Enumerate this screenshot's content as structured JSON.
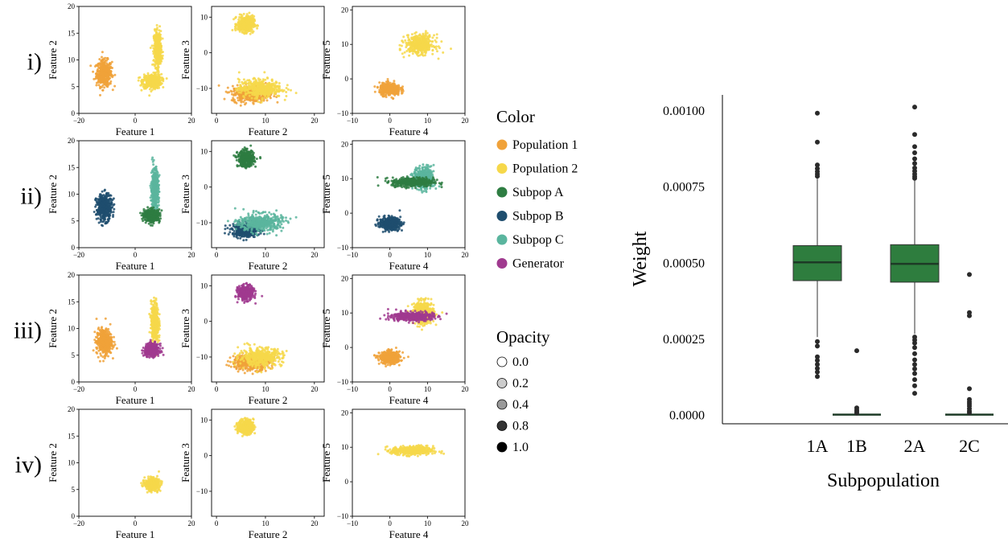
{
  "colors": {
    "population_1": "#f0a23a",
    "population_2": "#f6d84a",
    "subpop_a": "#2e7d42",
    "subpop_b": "#1f4e6e",
    "subpop_c": "#5ab59e",
    "generator": "#a03a8f",
    "box_fill": "#2e7d3e",
    "median_line": "#1d3a26",
    "outlier": "#2a2a2a"
  },
  "scatter_panel": {
    "row_labels": [
      "i)",
      "ii)",
      "iii)",
      "iv)"
    ],
    "panel_columns": [
      {
        "xlabel": "Feature 1",
        "ylabel": "Feature 2",
        "xlim": [
          -20,
          20
        ],
        "ylim": [
          0,
          20
        ],
        "xticks": [
          "−20",
          "0",
          "20"
        ],
        "yticks": [
          "0",
          "5",
          "10",
          "15",
          "20"
        ]
      },
      {
        "xlabel": "Feature 2",
        "ylabel": "Feature 3",
        "xlim": [
          -1,
          22
        ],
        "ylim": [
          -17,
          13
        ],
        "xticks": [
          "0",
          "10",
          "20"
        ],
        "yticks": [
          "10",
          "0",
          "−10"
        ]
      },
      {
        "xlabel": "Feature 4",
        "ylabel": "Feature 5",
        "xlim": [
          -10,
          20
        ],
        "ylim": [
          -10,
          21
        ],
        "xticks": [
          "−10",
          "0",
          "10",
          "20"
        ],
        "yticks": [
          "20",
          "10",
          "0",
          "−10"
        ]
      }
    ]
  },
  "legend": {
    "color_title": "Color",
    "color_items": [
      {
        "label": "Population 1",
        "color": "#f0a23a"
      },
      {
        "label": "Population 2",
        "color": "#f6d84a"
      },
      {
        "label": "Subpop A",
        "color": "#2e7d42"
      },
      {
        "label": "Subpop B",
        "color": "#1f4e6e"
      },
      {
        "label": "Subpop C",
        "color": "#5ab59e"
      },
      {
        "label": "Generator",
        "color": "#a03a8f"
      }
    ],
    "opacity_title": "Opacity",
    "opacity_items": [
      {
        "label": "0.0",
        "value": 0.0
      },
      {
        "label": "0.2",
        "value": 0.2
      },
      {
        "label": "0.4",
        "value": 0.4
      },
      {
        "label": "0.8",
        "value": 0.8
      },
      {
        "label": "1.0",
        "value": 1.0
      }
    ]
  },
  "chart_data": [
    {
      "type": "scatter",
      "grid": false,
      "legend": "right",
      "rows": [
        {
          "label": "i)",
          "clusters": [
            {
              "series": "Population 1",
              "space": "F1-F2",
              "center": [
                -11,
                7.5
              ],
              "spread": [
                2.5,
                2.2
              ]
            },
            {
              "series": "Population 2",
              "space": "F1-F2",
              "center": [
                6,
                6
              ],
              "spread": [
                3.0,
                1.2
              ]
            },
            {
              "series": "Population 2",
              "space": "F1-F2",
              "center": [
                8,
                12
              ],
              "spread": [
                1.2,
                3.0
              ]
            },
            {
              "series": "Population 2",
              "space": "F2-F3",
              "center": [
                6,
                8
              ],
              "spread": [
                1.5,
                2.0
              ]
            },
            {
              "series": "Population 1",
              "space": "F2-F3",
              "center": [
                7,
                -11.5
              ],
              "spread": [
                3.5,
                2.0
              ]
            },
            {
              "series": "Population 2",
              "space": "F2-F3",
              "center": [
                9,
                -10
              ],
              "spread": [
                4.0,
                2.3
              ]
            },
            {
              "series": "Population 1",
              "space": "F4-F5",
              "center": [
                0,
                -3
              ],
              "spread": [
                2.5,
                1.6
              ]
            },
            {
              "series": "Population 2",
              "space": "F4-F5",
              "center": [
                8,
                10
              ],
              "spread": [
                3.5,
                2.5
              ]
            }
          ]
        },
        {
          "label": "ii)",
          "clusters": [
            {
              "series": "Subpop B",
              "space": "F1-F2",
              "center": [
                -11,
                7.5
              ],
              "spread": [
                2.5,
                2.2
              ]
            },
            {
              "series": "Subpop C",
              "space": "F1-F2",
              "center": [
                7,
                11
              ],
              "spread": [
                1.2,
                3.5
              ]
            },
            {
              "series": "Subpop A",
              "space": "F1-F2",
              "center": [
                6,
                6
              ],
              "spread": [
                2.5,
                1.0
              ]
            },
            {
              "series": "Subpop A",
              "space": "F2-F3",
              "center": [
                6,
                8
              ],
              "spread": [
                1.5,
                2.0
              ]
            },
            {
              "series": "Subpop B",
              "space": "F2-F3",
              "center": [
                6,
                -12
              ],
              "spread": [
                2.5,
                1.8
              ]
            },
            {
              "series": "Subpop C",
              "space": "F2-F3",
              "center": [
                9,
                -10
              ],
              "spread": [
                4.0,
                2.3
              ]
            },
            {
              "series": "Subpop B",
              "space": "F4-F5",
              "center": [
                0,
                -3
              ],
              "spread": [
                2.5,
                1.6
              ]
            },
            {
              "series": "Subpop C",
              "space": "F4-F5",
              "center": [
                9,
                10
              ],
              "spread": [
                2.5,
                3.0
              ]
            },
            {
              "series": "Subpop A",
              "space": "F4-F5",
              "center": [
                6,
                9
              ],
              "spread": [
                5.0,
                1.2
              ]
            }
          ]
        },
        {
          "label": "iii)",
          "clusters": [
            {
              "series": "Population 1",
              "space": "F1-F2",
              "center": [
                -11,
                7.5
              ],
              "spread": [
                2.5,
                2.2
              ]
            },
            {
              "series": "Population 2",
              "space": "F1-F2",
              "center": [
                7,
                11
              ],
              "spread": [
                1.2,
                3.5
              ]
            },
            {
              "series": "Generator",
              "space": "F1-F2",
              "center": [
                6,
                6
              ],
              "spread": [
                2.3,
                1.0
              ]
            },
            {
              "series": "Generator",
              "space": "F2-F3",
              "center": [
                6,
                8
              ],
              "spread": [
                1.4,
                1.8
              ]
            },
            {
              "series": "Population 1",
              "space": "F2-F3",
              "center": [
                7,
                -11.5
              ],
              "spread": [
                3.5,
                2.0
              ]
            },
            {
              "series": "Population 2",
              "space": "F2-F3",
              "center": [
                9,
                -10
              ],
              "spread": [
                4.0,
                2.3
              ]
            },
            {
              "series": "Population 1",
              "space": "F4-F5",
              "center": [
                0,
                -3
              ],
              "spread": [
                2.5,
                1.6
              ]
            },
            {
              "series": "Population 2",
              "space": "F4-F5",
              "center": [
                9,
                10
              ],
              "spread": [
                2.5,
                3.0
              ]
            },
            {
              "series": "Generator",
              "space": "F4-F5",
              "center": [
                6,
                9
              ],
              "spread": [
                5.0,
                1.2
              ]
            }
          ]
        },
        {
          "label": "iv)",
          "clusters": [
            {
              "series": "Population 2",
              "space": "F1-F2",
              "center": [
                6,
                6
              ],
              "spread": [
                2.3,
                1.0
              ]
            },
            {
              "series": "Population 2",
              "space": "F2-F3",
              "center": [
                6,
                8
              ],
              "spread": [
                1.4,
                1.8
              ]
            },
            {
              "series": "Population 2",
              "space": "F4-F5",
              "center": [
                6,
                9
              ],
              "spread": [
                5.0,
                1.2
              ]
            }
          ]
        }
      ]
    },
    {
      "type": "box",
      "xlabel": "Subpopulation",
      "ylabel": "Weight",
      "ylim": [
        -3e-05,
        0.00105
      ],
      "yticks": [
        {
          "value": 0.0,
          "label": "0.0000"
        },
        {
          "value": 0.00025,
          "label": "0.00025"
        },
        {
          "value": 0.0005,
          "label": "0.00050"
        },
        {
          "value": 0.00075,
          "label": "0.00075"
        },
        {
          "value": 0.001,
          "label": "0.00100"
        }
      ],
      "grid": false,
      "categories": [
        "1A",
        "1B",
        "2A",
        "2C"
      ],
      "boxes": [
        {
          "category": "1A",
          "q1": 0.00044,
          "median": 0.0005,
          "q3": 0.000555,
          "whisker_low": 0.000255,
          "whisker_high": 0.000775,
          "outliers": [
            0.00099,
            0.000895,
            0.00082,
            0.000808,
            0.000798,
            0.00079,
            0.000783,
            0.00024,
            0.000225,
            0.00019,
            0.000178,
            0.000165,
            0.000152,
            0.00014,
            0.000125
          ]
        },
        {
          "category": "1B",
          "q1": 0.0,
          "median": 0.0,
          "q3": 0.0,
          "whisker_low": 0.0,
          "whisker_high": 0.0,
          "outliers": [
            0.00021,
            2.2e-05,
            1.5e-05,
            1e-05,
            5e-06
          ]
        },
        {
          "category": "2A",
          "q1": 0.000435,
          "median": 0.000495,
          "q3": 0.000558,
          "whisker_low": 0.000265,
          "whisker_high": 0.00077,
          "outliers": [
            0.00101,
            0.00092,
            0.00088,
            0.00086,
            0.00084,
            0.000825,
            0.00081,
            0.0008,
            0.00079,
            0.000782,
            0.000776,
            0.000255,
            0.000245,
            0.000235,
            0.00022,
            0.0002,
            0.00018,
            0.000165,
            0.00015,
            0.000135,
            0.000115,
            9.5e-05,
            7e-05
          ]
        },
        {
          "category": "2C",
          "q1": 0.0,
          "median": 0.0,
          "q3": 0.0,
          "whisker_low": 0.0,
          "whisker_high": 0.0,
          "outliers": [
            0.00046,
            0.000335,
            0.000325,
            8.5e-05,
            5e-05,
            4.2e-05,
            3.5e-05,
            2.8e-05,
            2e-05,
            1.2e-05,
            6e-06
          ]
        }
      ]
    }
  ]
}
